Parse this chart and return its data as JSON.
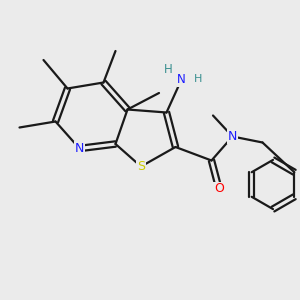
{
  "bg_color": "#ebebeb",
  "atom_colors": {
    "C": "#000000",
    "N": "#1a1aff",
    "S": "#cccc00",
    "O": "#ff0000",
    "NH2_N": "#1a1aff",
    "NH2_H": "#3a9090"
  },
  "bond_color": "#1a1a1a",
  "bond_width": 1.6,
  "dbl_sep": 0.09
}
